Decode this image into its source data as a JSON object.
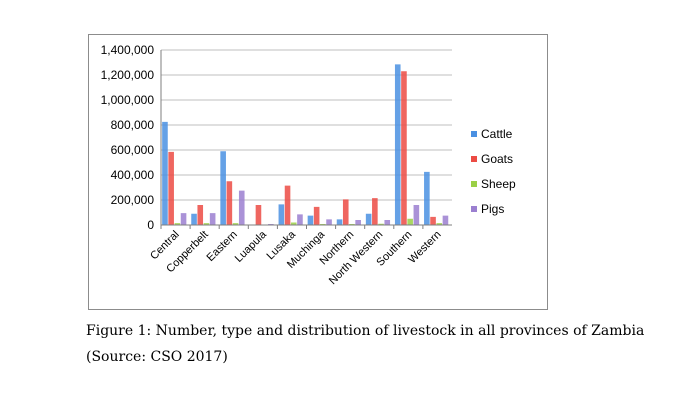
{
  "chart_data": {
    "type": "bar",
    "categories": [
      "Central",
      "Copperbelt",
      "Eastern",
      "Luapula",
      "Lusaka",
      "Muchinga",
      "Northern",
      "North Western",
      "Southern",
      "Western"
    ],
    "series": [
      {
        "name": "Cattle",
        "color": "#4a90e2",
        "values": [
          825000,
          90000,
          590000,
          3000,
          165000,
          75000,
          45000,
          90000,
          1285000,
          425000
        ]
      },
      {
        "name": "Goats",
        "color": "#ec4b44",
        "values": [
          585000,
          160000,
          350000,
          160000,
          315000,
          145000,
          205000,
          215000,
          1230000,
          65000
        ]
      },
      {
        "name": "Sheep",
        "color": "#9bd046",
        "values": [
          15000,
          15000,
          15000,
          2000,
          20000,
          8000,
          8000,
          10000,
          50000,
          15000
        ]
      },
      {
        "name": "Pigs",
        "color": "#9b7fd0",
        "values": [
          95000,
          95000,
          275000,
          8000,
          85000,
          45000,
          40000,
          40000,
          160000,
          75000
        ]
      }
    ],
    "yticks": [
      "0",
      "200,000",
      "400,000",
      "600,000",
      "800,000",
      "1,000,000",
      "1,200,000",
      "1,400,000"
    ],
    "ylim": [
      0,
      1400000
    ],
    "grid": true,
    "legend_position": "right"
  },
  "caption": {
    "line1": "Figure 1: Number, type and distribution of livestock in all provinces of Zambia",
    "line2": "(Source: CSO 2017)"
  }
}
